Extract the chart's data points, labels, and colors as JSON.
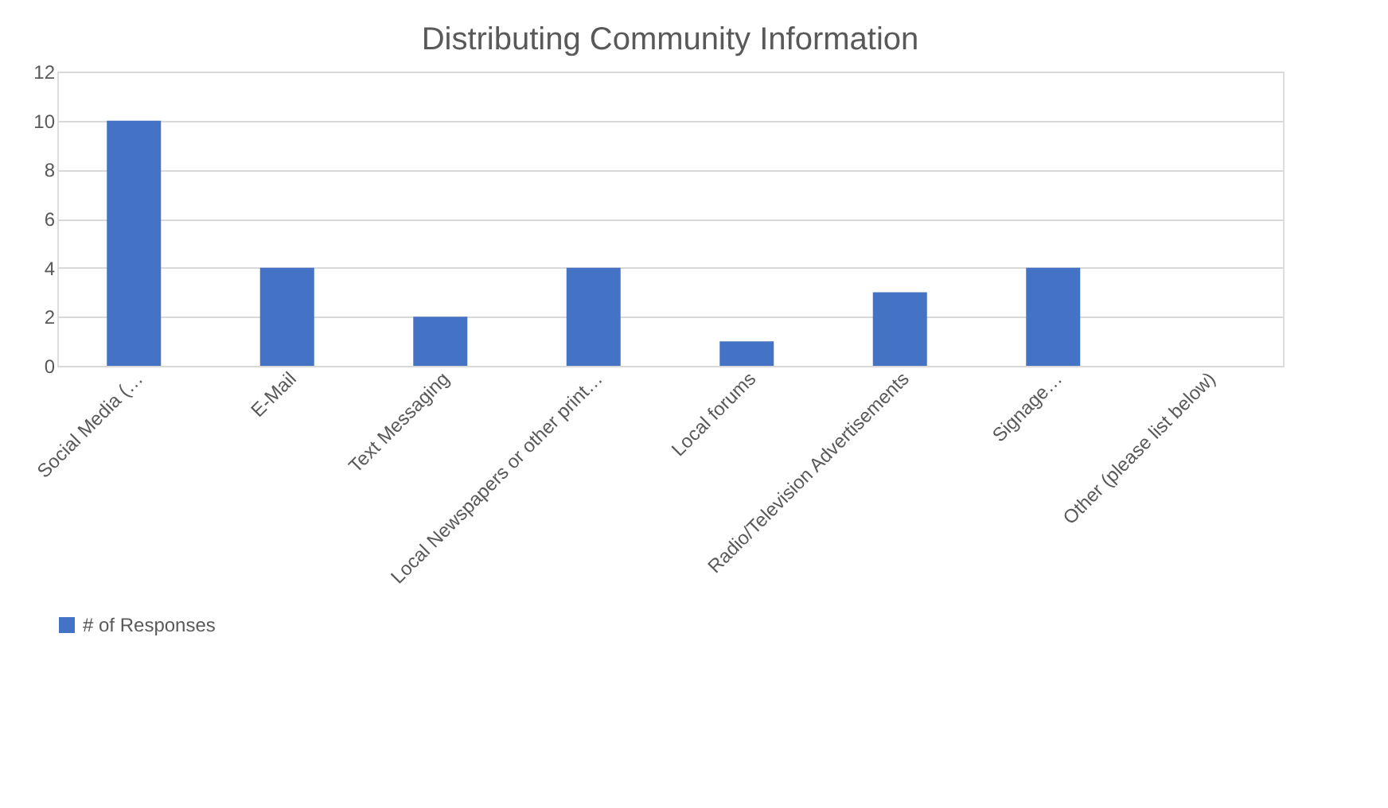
{
  "chart_data": {
    "type": "bar",
    "title": "Distributing Community Information",
    "categories": [
      "Social Media (…",
      "E-Mail",
      "Text Messaging",
      "Local Newspapers or other print…",
      "Local forums",
      "Radio/Television Advertisements",
      "Signage…",
      "Other (please list below)"
    ],
    "series": [
      {
        "name": "# of Responses",
        "color": "#4472c4",
        "values": [
          10,
          4,
          2,
          4,
          1,
          3,
          4,
          0
        ]
      }
    ],
    "ylim": [
      0,
      12
    ],
    "yticks": [
      0,
      2,
      4,
      6,
      8,
      10,
      12
    ],
    "grid": "y",
    "legend": "bottom"
  }
}
